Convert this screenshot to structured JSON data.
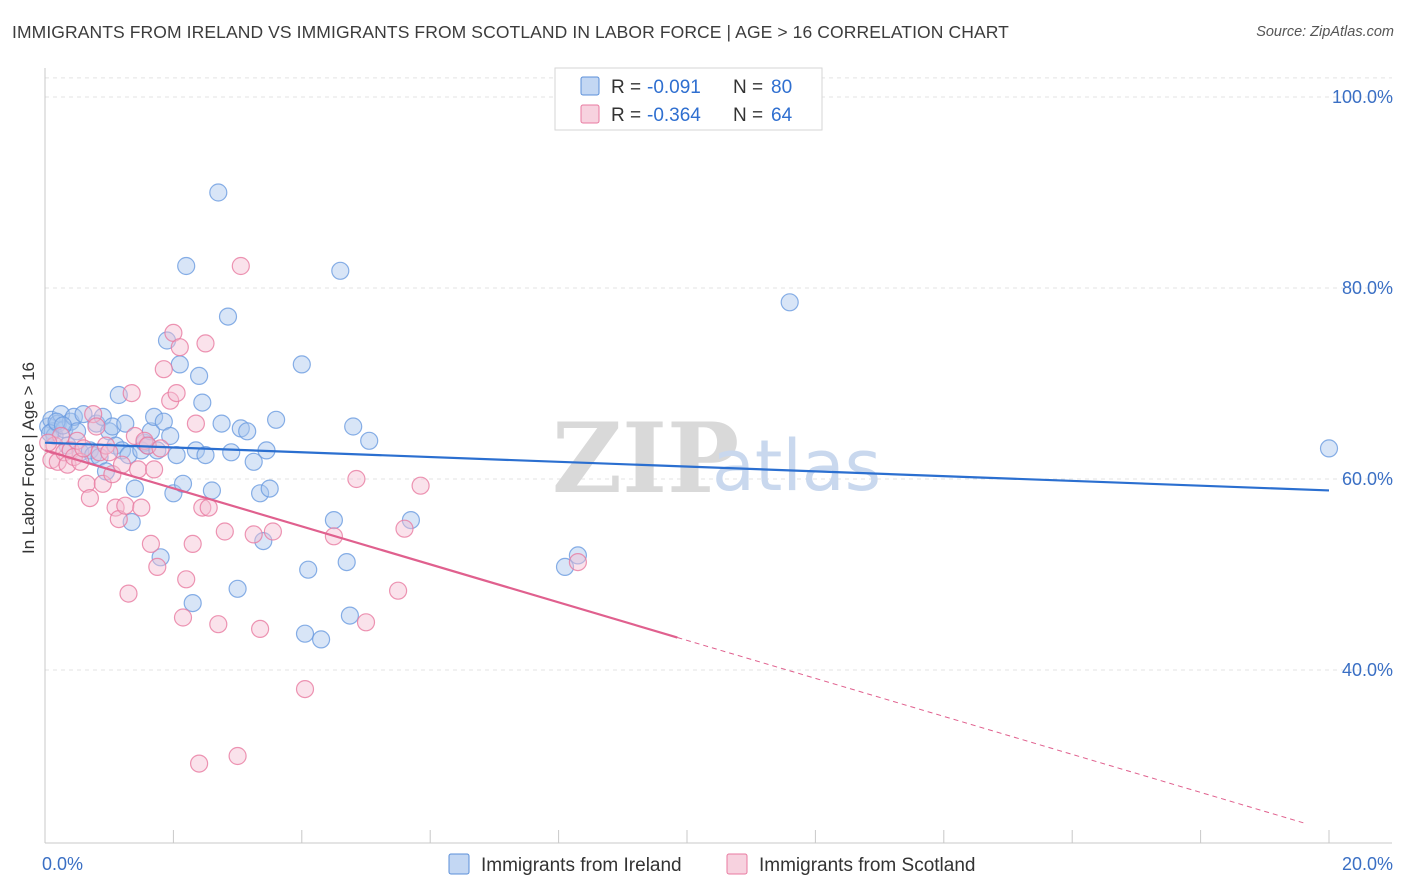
{
  "title": "IMMIGRANTS FROM IRELAND VS IMMIGRANTS FROM SCOTLAND IN LABOR FORCE | AGE > 16 CORRELATION CHART",
  "source": "Source: ZipAtlas.com",
  "watermark": {
    "zip": "ZIP",
    "atlas": "atlas"
  },
  "chart_data": {
    "type": "scatter",
    "xlabel": "",
    "ylabel": "In Labor Force | Age > 16",
    "xlim": [
      0,
      20
    ],
    "ylim": [
      22,
      104
    ],
    "x_tick_labels": [
      {
        "value": 0,
        "label": "0.0%"
      },
      {
        "value": 20,
        "label": "20.0%"
      }
    ],
    "y_tick_labels": [
      {
        "value": 100,
        "label": "100.0%"
      },
      {
        "value": 80,
        "label": "80.0%"
      },
      {
        "value": 60,
        "label": "60.0%"
      },
      {
        "value": 40,
        "label": "40.0%"
      }
    ],
    "legend": {
      "placement": "top-center",
      "rows": [
        {
          "r_label": "R =",
          "r_value": "-0.091",
          "n_label": "N =",
          "n_value": "80",
          "color": "#5b8fd9"
        },
        {
          "r_label": "R =",
          "r_value": "-0.364",
          "n_label": "N =",
          "n_value": "64",
          "color": "#e87aa0"
        }
      ]
    },
    "series": [
      {
        "name": "Immigrants from Ireland",
        "color": "#6a9be0",
        "fill": "#a9c6ee",
        "trend": {
          "x0": 0,
          "y0": 63.8,
          "x1": 20,
          "y1": 58.8,
          "solid_until": 20
        },
        "points": [
          [
            0.05,
            65.5
          ],
          [
            0.1,
            66.2
          ],
          [
            0.12,
            65.0
          ],
          [
            0.15,
            64.5
          ],
          [
            0.2,
            65.8
          ],
          [
            0.25,
            66.8
          ],
          [
            0.3,
            65.2
          ],
          [
            0.35,
            63.5
          ],
          [
            0.4,
            66.0
          ],
          [
            0.45,
            66.5
          ],
          [
            0.5,
            65.0
          ],
          [
            0.55,
            62.8
          ],
          [
            0.6,
            66.8
          ],
          [
            0.7,
            63.0
          ],
          [
            0.75,
            62.5
          ],
          [
            0.8,
            65.8
          ],
          [
            0.85,
            62.3
          ],
          [
            0.9,
            66.5
          ],
          [
            0.95,
            60.8
          ],
          [
            1.0,
            65.0
          ],
          [
            1.05,
            65.5
          ],
          [
            1.1,
            63.5
          ],
          [
            1.15,
            68.8
          ],
          [
            1.2,
            63.0
          ],
          [
            1.25,
            65.8
          ],
          [
            1.3,
            62.5
          ],
          [
            1.35,
            55.5
          ],
          [
            1.4,
            59.0
          ],
          [
            1.5,
            63.0
          ],
          [
            1.55,
            63.8
          ],
          [
            1.6,
            63.5
          ],
          [
            1.65,
            65.0
          ],
          [
            1.7,
            66.5
          ],
          [
            1.75,
            63.0
          ],
          [
            1.8,
            51.8
          ],
          [
            1.85,
            66.0
          ],
          [
            1.9,
            74.5
          ],
          [
            1.95,
            64.5
          ],
          [
            2.0,
            58.5
          ],
          [
            2.05,
            62.5
          ],
          [
            2.1,
            72.0
          ],
          [
            2.15,
            59.5
          ],
          [
            2.2,
            82.3
          ],
          [
            2.3,
            47.0
          ],
          [
            2.35,
            63.0
          ],
          [
            2.4,
            70.8
          ],
          [
            2.45,
            68.0
          ],
          [
            2.5,
            62.5
          ],
          [
            2.6,
            58.8
          ],
          [
            2.7,
            90.0
          ],
          [
            2.75,
            65.8
          ],
          [
            2.85,
            77.0
          ],
          [
            2.9,
            62.8
          ],
          [
            3.0,
            48.5
          ],
          [
            3.05,
            65.3
          ],
          [
            3.15,
            65.0
          ],
          [
            3.25,
            61.8
          ],
          [
            3.35,
            58.5
          ],
          [
            3.4,
            53.5
          ],
          [
            3.45,
            63.0
          ],
          [
            3.5,
            59.0
          ],
          [
            3.6,
            66.2
          ],
          [
            4.0,
            72.0
          ],
          [
            4.05,
            43.8
          ],
          [
            4.1,
            50.5
          ],
          [
            4.3,
            43.2
          ],
          [
            4.5,
            55.7
          ],
          [
            4.6,
            81.8
          ],
          [
            4.7,
            51.3
          ],
          [
            4.75,
            45.7
          ],
          [
            4.8,
            65.5
          ],
          [
            5.05,
            64.0
          ],
          [
            5.7,
            55.7
          ],
          [
            8.1,
            50.8
          ],
          [
            8.3,
            52.0
          ],
          [
            11.6,
            78.5
          ],
          [
            20.0,
            63.2
          ],
          [
            0.08,
            64.8
          ],
          [
            0.18,
            66.0
          ],
          [
            0.28,
            65.6
          ]
        ]
      },
      {
        "name": "Immigrants from Scotland",
        "color": "#e87aa0",
        "fill": "#f4bfd2",
        "trend": {
          "x0": 0,
          "y0": 63.0,
          "x1": 19.6,
          "y1": 24.0,
          "solid_until": 9.85
        },
        "points": [
          [
            0.1,
            62.0
          ],
          [
            0.15,
            63.5
          ],
          [
            0.2,
            61.8
          ],
          [
            0.25,
            64.5
          ],
          [
            0.3,
            62.8
          ],
          [
            0.35,
            61.5
          ],
          [
            0.4,
            63.0
          ],
          [
            0.45,
            62.3
          ],
          [
            0.5,
            64.0
          ],
          [
            0.55,
            61.8
          ],
          [
            0.6,
            63.2
          ],
          [
            0.65,
            59.5
          ],
          [
            0.7,
            58.0
          ],
          [
            0.75,
            66.8
          ],
          [
            0.8,
            65.5
          ],
          [
            0.85,
            62.8
          ],
          [
            0.9,
            59.5
          ],
          [
            0.95,
            63.5
          ],
          [
            1.0,
            62.8
          ],
          [
            1.05,
            60.5
          ],
          [
            1.1,
            57.0
          ],
          [
            1.15,
            55.8
          ],
          [
            1.2,
            61.5
          ],
          [
            1.25,
            57.2
          ],
          [
            1.3,
            48.0
          ],
          [
            1.35,
            69.0
          ],
          [
            1.4,
            64.5
          ],
          [
            1.45,
            61.0
          ],
          [
            1.5,
            57.0
          ],
          [
            1.55,
            64.0
          ],
          [
            1.6,
            63.5
          ],
          [
            1.65,
            53.2
          ],
          [
            1.7,
            61.0
          ],
          [
            1.75,
            50.8
          ],
          [
            1.8,
            63.2
          ],
          [
            1.85,
            71.5
          ],
          [
            1.95,
            68.2
          ],
          [
            2.0,
            75.3
          ],
          [
            2.05,
            69.0
          ],
          [
            2.1,
            73.8
          ],
          [
            2.15,
            45.5
          ],
          [
            2.2,
            49.5
          ],
          [
            2.3,
            53.2
          ],
          [
            2.35,
            65.8
          ],
          [
            2.4,
            30.2
          ],
          [
            2.45,
            57.0
          ],
          [
            2.5,
            74.2
          ],
          [
            2.55,
            57.0
          ],
          [
            2.7,
            44.8
          ],
          [
            2.8,
            54.5
          ],
          [
            3.0,
            31.0
          ],
          [
            3.05,
            82.3
          ],
          [
            3.25,
            54.2
          ],
          [
            3.35,
            44.3
          ],
          [
            3.55,
            54.5
          ],
          [
            4.05,
            38.0
          ],
          [
            4.5,
            54.0
          ],
          [
            4.85,
            60.0
          ],
          [
            5.0,
            45.0
          ],
          [
            5.5,
            48.3
          ],
          [
            5.6,
            54.8
          ],
          [
            5.85,
            59.3
          ],
          [
            8.3,
            51.3
          ],
          [
            0.05,
            63.8
          ]
        ]
      }
    ]
  },
  "bottom_legend": [
    {
      "label": "Immigrants from Ireland",
      "color": "#5b8fd9",
      "fill": "#a9c6ee"
    },
    {
      "label": "Immigrants from Scotland",
      "color": "#e87aa0",
      "fill": "#f4bfd2"
    }
  ]
}
